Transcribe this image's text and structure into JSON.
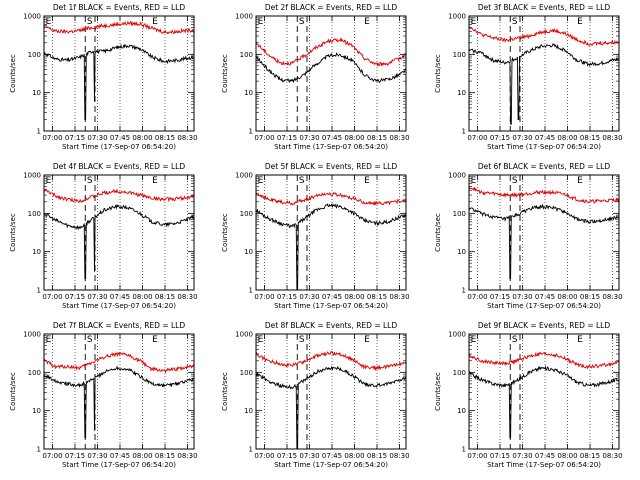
{
  "figure": {
    "background": "#ffffff"
  },
  "colors": {
    "events": "#000000",
    "lld": "#e00000",
    "axis": "#000000",
    "marker": "#000000"
  },
  "common": {
    "ylabel": "Counts/sec",
    "xlabel": "Start Time (17-Sep-07 06:54:20)",
    "x_tick_labels": [
      "07:00",
      "07:15",
      "07:30",
      "07:45",
      "08:00",
      "08:15",
      "08:30"
    ],
    "y_tick_labels": [
      "1",
      "10",
      "100",
      "1000"
    ],
    "marker_labels": [
      "E",
      "S",
      "E"
    ]
  },
  "chart_data": [
    {
      "type": "line",
      "title": "Det 1f BLACK = Events, RED = LLD",
      "yscale": "log",
      "ylim": [
        1,
        1000
      ],
      "xlim_minutes": [
        0,
        100
      ],
      "grid_x": "dotted",
      "x": [
        0,
        8,
        16,
        24,
        32,
        40,
        48,
        56,
        64,
        72,
        80,
        88,
        96,
        100
      ],
      "series": [
        {
          "name": "BLACK = Events",
          "color": "#000000",
          "values": [
            110,
            75,
            70,
            85,
            120,
            120,
            150,
            170,
            140,
            85,
            65,
            70,
            80,
            85
          ]
        },
        {
          "name": "RED = LLD",
          "color": "#e00000",
          "values": [
            550,
            400,
            390,
            420,
            500,
            560,
            600,
            650,
            620,
            480,
            380,
            390,
            420,
            430
          ]
        }
      ],
      "vertical_markers": [
        {
          "label": "E",
          "x": 1,
          "style": "dotted"
        },
        {
          "label": "S",
          "x": 27.5,
          "style": "dashed"
        },
        {
          "label": "S",
          "x": 34,
          "style": "dashed"
        },
        {
          "label": "E",
          "x": 74,
          "style": "dotted"
        }
      ],
      "dips": [
        {
          "series": 0,
          "x": 27.5,
          "value": 2
        },
        {
          "series": 0,
          "x": 33.5,
          "value": 6
        }
      ]
    },
    {
      "type": "line",
      "title": "Det 2f BLACK = Events, RED = LLD",
      "yscale": "log",
      "ylim": [
        1,
        1000
      ],
      "xlim_minutes": [
        0,
        100
      ],
      "grid_x": "dotted",
      "x": [
        0,
        8,
        16,
        24,
        32,
        40,
        48,
        56,
        64,
        72,
        80,
        88,
        96,
        100
      ],
      "series": [
        {
          "name": "BLACK = Events",
          "color": "#000000",
          "values": [
            85,
            40,
            22,
            20,
            30,
            55,
            90,
            100,
            70,
            30,
            20,
            22,
            30,
            40
          ]
        },
        {
          "name": "RED = LLD",
          "color": "#e00000",
          "values": [
            200,
            100,
            60,
            58,
            90,
            150,
            220,
            240,
            170,
            80,
            55,
            58,
            80,
            100
          ]
        }
      ],
      "vertical_markers": [
        {
          "label": "E",
          "x": 1,
          "style": "dotted"
        },
        {
          "label": "S",
          "x": 27.5,
          "style": "dashed"
        },
        {
          "label": "S",
          "x": 34,
          "style": "dashed"
        },
        {
          "label": "E",
          "x": 74,
          "style": "dotted"
        }
      ],
      "dips": []
    },
    {
      "type": "line",
      "title": "Det 3f BLACK = Events, RED = LLD",
      "yscale": "log",
      "ylim": [
        1,
        1000
      ],
      "xlim_minutes": [
        0,
        100
      ],
      "grid_x": "dotted",
      "x": [
        0,
        8,
        16,
        24,
        32,
        40,
        48,
        56,
        64,
        72,
        80,
        88,
        96,
        100
      ],
      "series": [
        {
          "name": "BLACK = Events",
          "color": "#000000",
          "values": [
            130,
            110,
            70,
            60,
            80,
            120,
            160,
            170,
            130,
            70,
            55,
            58,
            70,
            75
          ]
        },
        {
          "name": "RED = LLD",
          "color": "#e00000",
          "values": [
            550,
            330,
            270,
            230,
            260,
            300,
            380,
            420,
            350,
            240,
            190,
            195,
            205,
            210
          ]
        }
      ],
      "vertical_markers": [
        {
          "label": "E",
          "x": 1,
          "style": "dotted"
        },
        {
          "label": "S",
          "x": 27.5,
          "style": "dashed"
        },
        {
          "label": "S",
          "x": 34,
          "style": "dashed"
        },
        {
          "label": "E",
          "x": 74,
          "style": "dotted"
        }
      ],
      "dips": [
        {
          "series": 0,
          "x": 28,
          "value": 1.5
        },
        {
          "series": 0,
          "x": 33,
          "value": 2
        }
      ]
    },
    {
      "type": "line",
      "title": "Det 4f BLACK = Events, RED = LLD",
      "yscale": "log",
      "ylim": [
        1,
        1000
      ],
      "xlim_minutes": [
        0,
        100
      ],
      "grid_x": "dotted",
      "x": [
        0,
        8,
        16,
        24,
        32,
        40,
        48,
        56,
        64,
        72,
        80,
        88,
        96,
        100
      ],
      "series": [
        {
          "name": "BLACK = Events",
          "color": "#000000",
          "values": [
            100,
            65,
            48,
            42,
            70,
            120,
            150,
            140,
            100,
            60,
            50,
            55,
            70,
            80
          ]
        },
        {
          "name": "RED = LLD",
          "color": "#e00000",
          "values": [
            420,
            280,
            230,
            210,
            270,
            340,
            380,
            350,
            300,
            250,
            230,
            240,
            260,
            270
          ]
        }
      ],
      "vertical_markers": [
        {
          "label": "E",
          "x": 1,
          "style": "dotted"
        },
        {
          "label": "S",
          "x": 27.5,
          "style": "dashed"
        },
        {
          "label": "S",
          "x": 34,
          "style": "dashed"
        },
        {
          "label": "E",
          "x": 74,
          "style": "dotted"
        }
      ],
      "dips": [
        {
          "series": 0,
          "x": 27.5,
          "value": 2
        },
        {
          "series": 0,
          "x": 33.5,
          "value": 3
        }
      ]
    },
    {
      "type": "line",
      "title": "Det 5f BLACK = Events, RED = LLD",
      "yscale": "log",
      "ylim": [
        1,
        1000
      ],
      "xlim_minutes": [
        0,
        100
      ],
      "grid_x": "dotted",
      "x": [
        0,
        8,
        16,
        24,
        32,
        40,
        48,
        56,
        64,
        72,
        80,
        88,
        96,
        100
      ],
      "series": [
        {
          "name": "BLACK = Events",
          "color": "#000000",
          "values": [
            120,
            75,
            55,
            45,
            70,
            120,
            160,
            150,
            110,
            65,
            55,
            60,
            80,
            90
          ]
        },
        {
          "name": "RED = LLD",
          "color": "#e00000",
          "values": [
            350,
            230,
            200,
            180,
            220,
            290,
            330,
            300,
            250,
            190,
            180,
            190,
            210,
            220
          ]
        }
      ],
      "vertical_markers": [
        {
          "label": "E",
          "x": 1,
          "style": "dotted"
        },
        {
          "label": "S",
          "x": 27.5,
          "style": "dashed"
        },
        {
          "label": "S",
          "x": 34,
          "style": "dashed"
        },
        {
          "label": "E",
          "x": 74,
          "style": "dotted"
        }
      ],
      "dips": [
        {
          "series": 0,
          "x": 27.5,
          "value": 1
        }
      ]
    },
    {
      "type": "line",
      "title": "Det 6f BLACK = Events, RED = LLD",
      "yscale": "log",
      "ylim": [
        1,
        1000
      ],
      "xlim_minutes": [
        0,
        100
      ],
      "grid_x": "dotted",
      "x": [
        0,
        8,
        16,
        24,
        32,
        40,
        48,
        56,
        64,
        72,
        80,
        88,
        96,
        100
      ],
      "series": [
        {
          "name": "BLACK = Events",
          "color": "#000000",
          "values": [
            140,
            100,
            80,
            70,
            90,
            130,
            150,
            140,
            110,
            70,
            60,
            65,
            75,
            80
          ]
        },
        {
          "name": "RED = LLD",
          "color": "#e00000",
          "values": [
            500,
            350,
            330,
            300,
            300,
            330,
            360,
            350,
            310,
            230,
            200,
            210,
            220,
            225
          ]
        }
      ],
      "vertical_markers": [
        {
          "label": "E",
          "x": 1,
          "style": "dotted"
        },
        {
          "label": "S",
          "x": 27.5,
          "style": "dashed"
        },
        {
          "label": "S",
          "x": 34,
          "style": "dashed"
        },
        {
          "label": "E",
          "x": 74,
          "style": "dotted"
        }
      ],
      "dips": [
        {
          "series": 0,
          "x": 27.5,
          "value": 2
        }
      ]
    },
    {
      "type": "line",
      "title": "Det 7f BLACK = Events, RED = LLD",
      "yscale": "log",
      "ylim": [
        1,
        1000
      ],
      "xlim_minutes": [
        0,
        100
      ],
      "grid_x": "dotted",
      "x": [
        0,
        8,
        16,
        24,
        32,
        40,
        48,
        56,
        64,
        72,
        80,
        88,
        96,
        100
      ],
      "series": [
        {
          "name": "BLACK = Events",
          "color": "#000000",
          "values": [
            85,
            60,
            50,
            45,
            65,
            100,
            130,
            120,
            80,
            50,
            45,
            50,
            60,
            65
          ]
        },
        {
          "name": "RED = LLD",
          "color": "#e00000",
          "values": [
            200,
            140,
            140,
            130,
            180,
            250,
            300,
            280,
            200,
            120,
            110,
            120,
            140,
            150
          ]
        }
      ],
      "vertical_markers": [
        {
          "label": "E",
          "x": 1,
          "style": "dotted"
        },
        {
          "label": "S",
          "x": 27.5,
          "style": "dashed"
        },
        {
          "label": "S",
          "x": 34,
          "style": "dashed"
        },
        {
          "label": "E",
          "x": 74,
          "style": "dotted"
        }
      ],
      "dips": [
        {
          "series": 0,
          "x": 27.5,
          "value": 2
        },
        {
          "series": 0,
          "x": 33.5,
          "value": 3
        }
      ]
    },
    {
      "type": "line",
      "title": "Det 8f BLACK = Events, RED = LLD",
      "yscale": "log",
      "ylim": [
        1,
        1000
      ],
      "xlim_minutes": [
        0,
        100
      ],
      "grid_x": "dotted",
      "x": [
        0,
        8,
        16,
        24,
        32,
        40,
        48,
        56,
        64,
        72,
        80,
        88,
        96,
        100
      ],
      "series": [
        {
          "name": "BLACK = Events",
          "color": "#000000",
          "values": [
            95,
            60,
            45,
            40,
            60,
            100,
            130,
            125,
            85,
            50,
            45,
            50,
            65,
            75
          ]
        },
        {
          "name": "RED = LLD",
          "color": "#e00000",
          "values": [
            300,
            200,
            170,
            150,
            190,
            260,
            320,
            300,
            220,
            140,
            130,
            140,
            170,
            180
          ]
        }
      ],
      "vertical_markers": [
        {
          "label": "E",
          "x": 1,
          "style": "dotted"
        },
        {
          "label": "S",
          "x": 27.5,
          "style": "dashed"
        },
        {
          "label": "S",
          "x": 34,
          "style": "dashed"
        },
        {
          "label": "E",
          "x": 74,
          "style": "dotted"
        }
      ],
      "dips": [
        {
          "series": 0,
          "x": 27.5,
          "value": 1
        }
      ]
    },
    {
      "type": "line",
      "title": "Det 9f BLACK = Events, RED = LLD",
      "yscale": "log",
      "ylim": [
        1,
        1000
      ],
      "xlim_minutes": [
        0,
        100
      ],
      "grid_x": "dotted",
      "x": [
        0,
        8,
        16,
        24,
        32,
        40,
        48,
        56,
        64,
        72,
        80,
        88,
        96,
        100
      ],
      "series": [
        {
          "name": "BLACK = Events",
          "color": "#000000",
          "values": [
            95,
            65,
            50,
            45,
            60,
            100,
            130,
            120,
            90,
            55,
            45,
            50,
            60,
            65
          ]
        },
        {
          "name": "RED = LLD",
          "color": "#e00000",
          "values": [
            280,
            200,
            180,
            170,
            200,
            260,
            300,
            290,
            230,
            160,
            140,
            150,
            170,
            180
          ]
        }
      ],
      "vertical_markers": [
        {
          "label": "E",
          "x": 1,
          "style": "dotted"
        },
        {
          "label": "S",
          "x": 27.5,
          "style": "dashed"
        },
        {
          "label": "S",
          "x": 34,
          "style": "dashed"
        },
        {
          "label": "E",
          "x": 74,
          "style": "dotted"
        }
      ],
      "dips": [
        {
          "series": 0,
          "x": 27.5,
          "value": 2
        }
      ]
    }
  ]
}
